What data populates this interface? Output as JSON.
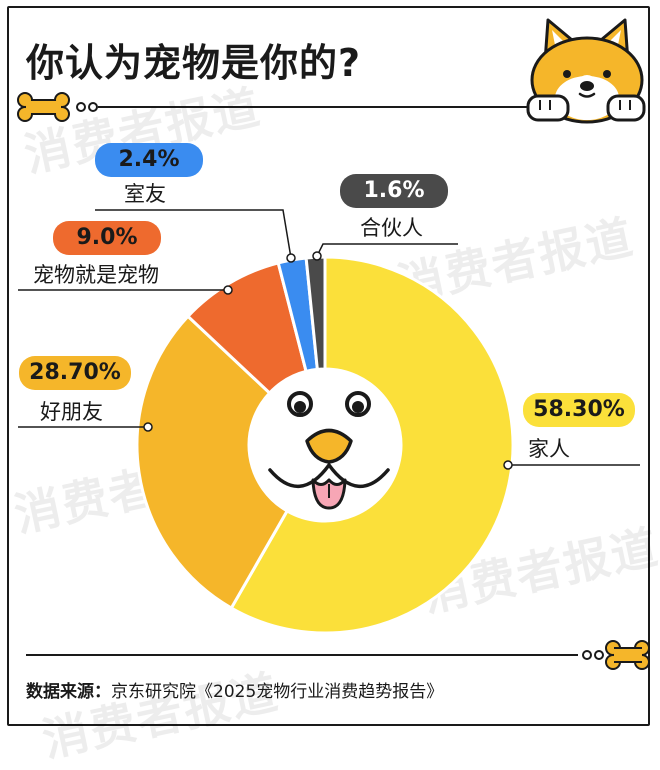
{
  "title": "你认为宠物是你的?",
  "watermark": "消费者报道",
  "source": {
    "label": "数据来源：",
    "text": "京东研究院《2025宠物行业消费趋势报告》"
  },
  "colors": {
    "yellow": "#fbe03a",
    "amber": "#f5b62a",
    "orange": "#ee6a2e",
    "blue": "#3a8cf0",
    "gray": "#4a4a4a"
  },
  "chart_data": {
    "type": "pie",
    "title": "你认为宠物是你的?",
    "labels": [
      "家人",
      "好朋友",
      "宠物就是宠物",
      "室友",
      "合伙人"
    ],
    "values": [
      58.3,
      28.7,
      9.0,
      2.4,
      1.6
    ],
    "display_values": [
      "58.30%",
      "28.70%",
      "9.0%",
      "2.4%",
      "1.6%"
    ],
    "colors": [
      "#fbe03a",
      "#f5b62a",
      "#ee6a2e",
      "#3a8cf0",
      "#4a4a4a"
    ]
  }
}
